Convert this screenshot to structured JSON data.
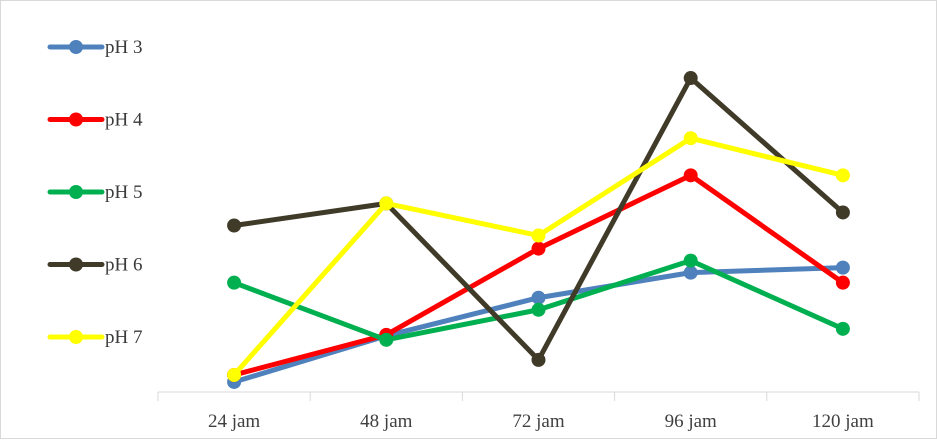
{
  "chart_data": {
    "type": "line",
    "categories": [
      "24 jam",
      "48 jam",
      "72 jam",
      "96 jam",
      "120 jam"
    ],
    "series": [
      {
        "name": "pH 3",
        "color": "#4f81bd",
        "values": [
          0.05,
          0.51,
          0.89,
          1.14,
          1.19
        ]
      },
      {
        "name": "pH 4",
        "color": "#ff0000",
        "values": [
          0.12,
          0.52,
          1.38,
          2.11,
          1.04
        ]
      },
      {
        "name": "pH 5",
        "color": "#00b050",
        "values": [
          1.04,
          0.47,
          0.77,
          1.26,
          0.58
        ]
      },
      {
        "name": "pH 6",
        "color": "#403a28",
        "values": [
          1.61,
          1.83,
          0.27,
          3.08,
          1.74
        ]
      },
      {
        "name": "pH 7",
        "color": "#ffff00",
        "values": [
          0.12,
          1.83,
          1.51,
          2.48,
          2.11
        ]
      }
    ],
    "ylim": [
      0,
      3.25
    ],
    "grid": false,
    "legend_position": "left"
  }
}
